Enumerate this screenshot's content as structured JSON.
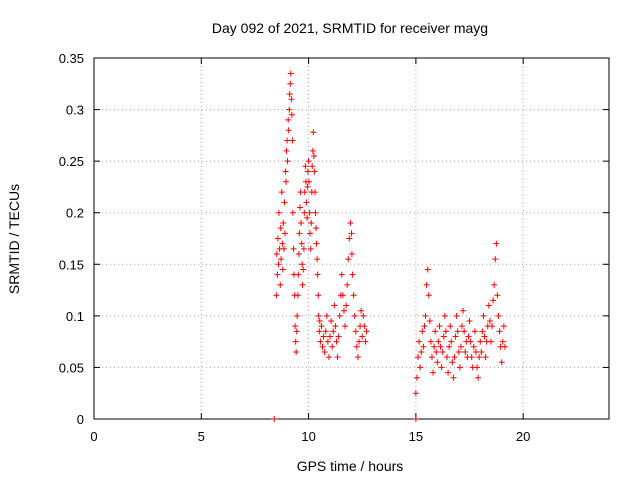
{
  "chart_data": {
    "type": "scatter",
    "title": "Day 092 of 2021, SRMTID for receiver mayg",
    "xlabel": "GPS time / hours",
    "ylabel": "SRMTID / TECUs",
    "xlim": [
      0,
      24
    ],
    "ylim": [
      0,
      0.35
    ],
    "x_ticks": [
      0,
      5,
      10,
      15,
      20
    ],
    "y_ticks": [
      0,
      0.05,
      0.1,
      0.15,
      0.2,
      0.25,
      0.3,
      0.35
    ],
    "y_tick_labels": [
      "0",
      "0.05",
      "0.1",
      "0.15",
      "0.2",
      "0.25",
      "0.3",
      "0.35"
    ],
    "grid": true,
    "marker": "+",
    "series": [
      {
        "color": "#ff0000",
        "points": [
          [
            8.5,
            0.12
          ],
          [
            8.52,
            0.16
          ],
          [
            8.55,
            0.14
          ],
          [
            8.57,
            0.175
          ],
          [
            8.6,
            0.15
          ],
          [
            8.62,
            0.2
          ],
          [
            8.65,
            0.165
          ],
          [
            8.68,
            0.13
          ],
          [
            8.7,
            0.185
          ],
          [
            8.72,
            0.155
          ],
          [
            8.75,
            0.22
          ],
          [
            8.78,
            0.17
          ],
          [
            8.8,
            0.145
          ],
          [
            8.82,
            0.19
          ],
          [
            8.85,
            0.165
          ],
          [
            8.88,
            0.21
          ],
          [
            8.9,
            0.18
          ],
          [
            8.93,
            0.24
          ],
          [
            8.95,
            0.23
          ],
          [
            8.97,
            0.26
          ],
          [
            9.0,
            0.27
          ],
          [
            9.02,
            0.25
          ],
          [
            9.05,
            0.29
          ],
          [
            9.07,
            0.28
          ],
          [
            9.1,
            0.3
          ],
          [
            9.12,
            0.315
          ],
          [
            9.15,
            0.325
          ],
          [
            9.17,
            0.335
          ],
          [
            9.2,
            0.31
          ],
          [
            9.22,
            0.295
          ],
          [
            9.25,
            0.27
          ],
          [
            9.27,
            0.2
          ],
          [
            9.3,
            0.165
          ],
          [
            9.32,
            0.14
          ],
          [
            9.35,
            0.12
          ],
          [
            9.37,
            0.09
          ],
          [
            9.4,
            0.075
          ],
          [
            9.42,
            0.065
          ],
          [
            9.45,
            0.085
          ],
          [
            9.47,
            0.1
          ],
          [
            9.5,
            0.12
          ],
          [
            9.52,
            0.14
          ],
          [
            9.55,
            0.16
          ],
          [
            9.57,
            0.18
          ],
          [
            9.6,
            0.205
          ],
          [
            9.62,
            0.22
          ],
          [
            9.65,
            0.19
          ],
          [
            9.68,
            0.17
          ],
          [
            9.7,
            0.15
          ],
          [
            9.72,
            0.13
          ],
          [
            9.75,
            0.145
          ],
          [
            9.78,
            0.165
          ],
          [
            9.8,
            0.2
          ],
          [
            9.82,
            0.22
          ],
          [
            9.85,
            0.245
          ],
          [
            9.88,
            0.23
          ],
          [
            9.9,
            0.21
          ],
          [
            9.93,
            0.195
          ],
          [
            9.95,
            0.225
          ],
          [
            9.97,
            0.24
          ],
          [
            10.0,
            0.25
          ],
          [
            10.02,
            0.23
          ],
          [
            10.05,
            0.2
          ],
          [
            10.07,
            0.18
          ],
          [
            10.1,
            0.165
          ],
          [
            10.12,
            0.19
          ],
          [
            10.15,
            0.22
          ],
          [
            10.17,
            0.245
          ],
          [
            10.2,
            0.26
          ],
          [
            10.22,
            0.278
          ],
          [
            10.25,
            0.255
          ],
          [
            10.27,
            0.24
          ],
          [
            10.3,
            0.22
          ],
          [
            10.32,
            0.2
          ],
          [
            10.35,
            0.185
          ],
          [
            10.37,
            0.17
          ],
          [
            10.4,
            0.155
          ],
          [
            10.42,
            0.14
          ],
          [
            10.45,
            0.12
          ],
          [
            10.47,
            0.1
          ],
          [
            10.5,
            0.085
          ],
          [
            10.52,
            0.095
          ],
          [
            10.55,
            0.075
          ],
          [
            10.6,
            0.09
          ],
          [
            10.65,
            0.07
          ],
          [
            10.7,
            0.08
          ],
          [
            10.75,
            0.065
          ],
          [
            10.8,
            0.085
          ],
          [
            10.85,
            0.1
          ],
          [
            10.9,
            0.075
          ],
          [
            10.95,
            0.06
          ],
          [
            11.0,
            0.08
          ],
          [
            11.05,
            0.095
          ],
          [
            11.1,
            0.07
          ],
          [
            11.15,
            0.085
          ],
          [
            11.2,
            0.11
          ],
          [
            11.25,
            0.09
          ],
          [
            11.3,
            0.075
          ],
          [
            11.35,
            0.06
          ],
          [
            11.4,
            0.08
          ],
          [
            11.45,
            0.1
          ],
          [
            11.5,
            0.12
          ],
          [
            11.55,
            0.14
          ],
          [
            11.6,
            0.12
          ],
          [
            11.65,
            0.105
          ],
          [
            11.7,
            0.09
          ],
          [
            11.75,
            0.11
          ],
          [
            11.8,
            0.13
          ],
          [
            11.85,
            0.155
          ],
          [
            11.9,
            0.175
          ],
          [
            11.95,
            0.19
          ],
          [
            12.0,
            0.18
          ],
          [
            12.02,
            0.16
          ],
          [
            12.05,
            0.14
          ],
          [
            12.1,
            0.12
          ],
          [
            12.15,
            0.1
          ],
          [
            12.2,
            0.085
          ],
          [
            12.25,
            0.07
          ],
          [
            12.3,
            0.06
          ],
          [
            12.35,
            0.075
          ],
          [
            12.4,
            0.09
          ],
          [
            12.45,
            0.105
          ],
          [
            12.5,
            0.08
          ],
          [
            12.55,
            0.1
          ],
          [
            12.6,
            0.09
          ],
          [
            12.65,
            0.075
          ],
          [
            12.7,
            0.085
          ],
          [
            15.0,
            0.025
          ],
          [
            15.05,
            0.04
          ],
          [
            15.1,
            0.06
          ],
          [
            15.15,
            0.075
          ],
          [
            15.2,
            0.05
          ],
          [
            15.25,
            0.065
          ],
          [
            15.3,
            0.085
          ],
          [
            15.35,
            0.07
          ],
          [
            15.4,
            0.09
          ],
          [
            15.45,
            0.1
          ],
          [
            15.5,
            0.13
          ],
          [
            15.55,
            0.145
          ],
          [
            15.6,
            0.12
          ],
          [
            15.65,
            0.095
          ],
          [
            15.7,
            0.075
          ],
          [
            15.75,
            0.06
          ],
          [
            15.8,
            0.045
          ],
          [
            15.85,
            0.07
          ],
          [
            15.9,
            0.085
          ],
          [
            15.95,
            0.065
          ],
          [
            16.0,
            0.055
          ],
          [
            16.05,
            0.075
          ],
          [
            16.1,
            0.09
          ],
          [
            16.15,
            0.07
          ],
          [
            16.2,
            0.05
          ],
          [
            16.25,
            0.065
          ],
          [
            16.3,
            0.08
          ],
          [
            16.35,
            0.1
          ],
          [
            16.4,
            0.085
          ],
          [
            16.45,
            0.06
          ],
          [
            16.5,
            0.045
          ],
          [
            16.55,
            0.07
          ],
          [
            16.6,
            0.09
          ],
          [
            16.65,
            0.075
          ],
          [
            16.7,
            0.055
          ],
          [
            16.75,
            0.04
          ],
          [
            16.8,
            0.06
          ],
          [
            16.85,
            0.08
          ],
          [
            16.9,
            0.1
          ],
          [
            16.95,
            0.085
          ],
          [
            17.0,
            0.065
          ],
          [
            17.05,
            0.05
          ],
          [
            17.1,
            0.07
          ],
          [
            17.15,
            0.09
          ],
          [
            17.2,
            0.105
          ],
          [
            17.25,
            0.085
          ],
          [
            17.3,
            0.065
          ],
          [
            17.35,
            0.075
          ],
          [
            17.4,
            0.06
          ],
          [
            17.45,
            0.08
          ],
          [
            17.5,
            0.095
          ],
          [
            17.55,
            0.075
          ],
          [
            17.6,
            0.06
          ],
          [
            17.65,
            0.05
          ],
          [
            17.7,
            0.07
          ],
          [
            17.75,
            0.085
          ],
          [
            17.8,
            0.065
          ],
          [
            17.85,
            0.05
          ],
          [
            17.9,
            0.04
          ],
          [
            17.95,
            0.06
          ],
          [
            18.0,
            0.075
          ],
          [
            18.05,
            0.065
          ],
          [
            18.1,
            0.085
          ],
          [
            18.15,
            0.1
          ],
          [
            18.2,
            0.08
          ],
          [
            18.25,
            0.06
          ],
          [
            18.3,
            0.075
          ],
          [
            18.35,
            0.09
          ],
          [
            18.4,
            0.11
          ],
          [
            18.45,
            0.095
          ],
          [
            18.5,
            0.075
          ],
          [
            18.55,
            0.09
          ],
          [
            18.6,
            0.115
          ],
          [
            18.65,
            0.13
          ],
          [
            18.7,
            0.155
          ],
          [
            18.75,
            0.17
          ],
          [
            18.8,
            0.12
          ],
          [
            18.85,
            0.1
          ],
          [
            18.9,
            0.085
          ],
          [
            18.95,
            0.07
          ],
          [
            19.0,
            0.055
          ],
          [
            19.05,
            0.075
          ],
          [
            19.1,
            0.09
          ],
          [
            19.15,
            0.07
          ],
          [
            8.4,
            0.0
          ],
          [
            15.0,
            0.0
          ]
        ]
      }
    ]
  }
}
